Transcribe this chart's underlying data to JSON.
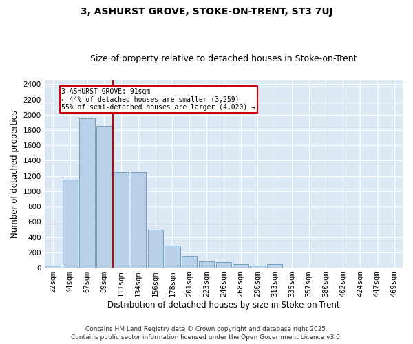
{
  "title1": "3, ASHURST GROVE, STOKE-ON-TRENT, ST3 7UJ",
  "title2": "Size of property relative to detached houses in Stoke-on-Trent",
  "xlabel": "Distribution of detached houses by size in Stoke-on-Trent",
  "ylabel": "Number of detached properties",
  "bins": [
    "22sqm",
    "44sqm",
    "67sqm",
    "89sqm",
    "111sqm",
    "134sqm",
    "156sqm",
    "178sqm",
    "201sqm",
    "223sqm",
    "246sqm",
    "268sqm",
    "290sqm",
    "313sqm",
    "335sqm",
    "357sqm",
    "380sqm",
    "402sqm",
    "424sqm",
    "447sqm",
    "469sqm"
  ],
  "bar_heights": [
    25,
    1150,
    1950,
    1850,
    1250,
    1250,
    500,
    290,
    150,
    80,
    75,
    50,
    25,
    50,
    5,
    2,
    2,
    2,
    2,
    2,
    2
  ],
  "bar_color": "#b8d0e8",
  "bar_edge_color": "#6699bb",
  "bg_color": "#dce9f5",
  "grid_color": "#ffffff",
  "vline_color": "#cc0000",
  "annotation_text": "3 ASHURST GROVE: 91sqm\n← 44% of detached houses are smaller (3,259)\n55% of semi-detached houses are larger (4,020) →",
  "annotation_box_color": "#ffffff",
  "annotation_box_edge": "#cc0000",
  "footer1": "Contains HM Land Registry data © Crown copyright and database right 2025.",
  "footer2": "Contains public sector information licensed under the Open Government Licence v3.0.",
  "ylim": [
    0,
    2450
  ],
  "yticks": [
    0,
    200,
    400,
    600,
    800,
    1000,
    1200,
    1400,
    1600,
    1800,
    2000,
    2200,
    2400
  ],
  "title1_fontsize": 10,
  "title2_fontsize": 9,
  "xlabel_fontsize": 8.5,
  "ylabel_fontsize": 8.5,
  "tick_fontsize": 7.5,
  "footer_fontsize": 6.5,
  "fig_bg": "#ffffff"
}
